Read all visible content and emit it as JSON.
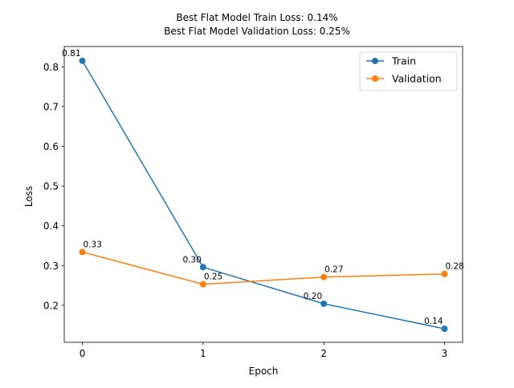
{
  "chart_data": {
    "type": "line",
    "title_lines": [
      "Best Flat Model Train Loss: 0.14%",
      "Best Flat Model Validation Loss: 0.25%"
    ],
    "xlabel": "Epoch",
    "ylabel": "Loss",
    "x": [
      0,
      1,
      2,
      3
    ],
    "xticks": [
      "0",
      "1",
      "2",
      "3"
    ],
    "yticks": [
      "0.2",
      "0.3",
      "0.4",
      "0.5",
      "0.6",
      "0.7",
      "0.8"
    ],
    "xlim": [
      -0.15,
      3.15
    ],
    "ylim": [
      0.107,
      0.851
    ],
    "grid": false,
    "legend_position": "top-right",
    "series": [
      {
        "name": "Train",
        "color": "#1f77b4",
        "values": [
          0.815,
          0.296,
          0.204,
          0.141
        ],
        "labels": [
          "0.81",
          "0.30",
          "0.20",
          "0.14"
        ],
        "label_side": "left"
      },
      {
        "name": "Validation",
        "color": "#ff7f0e",
        "values": [
          0.334,
          0.253,
          0.271,
          0.279
        ],
        "labels": [
          "0.33",
          "0.25",
          "0.27",
          "0.28"
        ],
        "label_side": "right"
      }
    ]
  }
}
